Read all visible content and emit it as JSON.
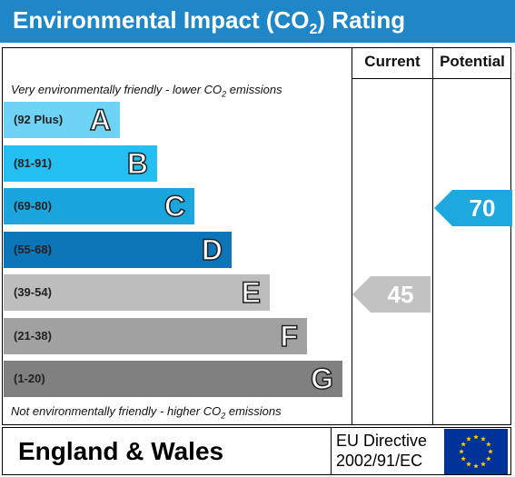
{
  "header": {
    "title_prefix": "Environmental Impact (CO",
    "title_sub": "2",
    "title_suffix": ") Rating",
    "background": "#1f86c8"
  },
  "columns": {
    "current": "Current",
    "potential": "Potential"
  },
  "notes": {
    "top_prefix": "Very environmentally friendly - lower CO",
    "top_sub": "2",
    "top_suffix": " emissions",
    "bottom_prefix": "Not environmentally friendly - higher CO",
    "bottom_sub": "2",
    "bottom_suffix": " emissions"
  },
  "chart_data": {
    "type": "bar",
    "title": "Environmental Impact (CO2) Rating",
    "bands": [
      {
        "letter": "A",
        "range": "(92 Plus)",
        "color": "#6fd3f5"
      },
      {
        "letter": "B",
        "range": "(81-91)",
        "color": "#23bff3"
      },
      {
        "letter": "C",
        "range": "(69-80)",
        "color": "#1aa5de"
      },
      {
        "letter": "D",
        "range": "(55-68)",
        "color": "#0b75b8"
      },
      {
        "letter": "E",
        "range": "(39-54)",
        "color": "#bdbdbd"
      },
      {
        "letter": "F",
        "range": "(21-38)",
        "color": "#a1a1a1"
      },
      {
        "letter": "G",
        "range": "(1-20)",
        "color": "#808080"
      }
    ],
    "current": {
      "value": 45,
      "band": "E",
      "color": "#c2c2c2"
    },
    "potential": {
      "value": 70,
      "band": "C",
      "color": "#1ea8e0"
    }
  },
  "footer": {
    "region": "England & Wales",
    "directive_line1": "EU Directive",
    "directive_line2": "2002/91/EC",
    "flag_name": "eu-flag",
    "flag_color": "#003399",
    "star_color": "#ffcc00"
  }
}
